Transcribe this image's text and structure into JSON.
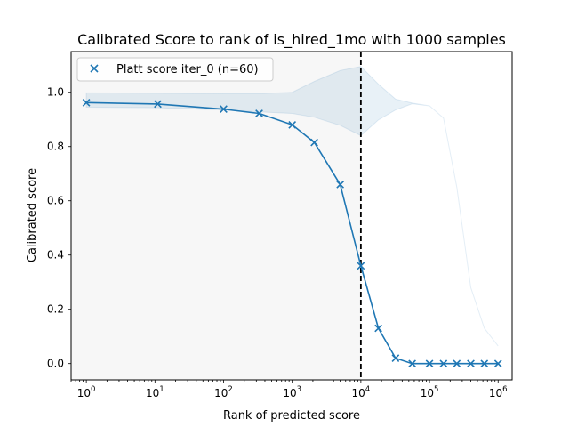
{
  "chart_data": {
    "type": "line",
    "title": "Calibrated Score to rank of is_hired_1mo with 1000 samples",
    "xlabel": "Rank of predicted score",
    "ylabel": "Calibrated score",
    "xscale": "log",
    "xlim": [
      0.6,
      1600000
    ],
    "ylim": [
      -0.06,
      1.15
    ],
    "x_ticks": [
      {
        "base": "10",
        "exp": "0",
        "value": 1
      },
      {
        "base": "10",
        "exp": "1",
        "value": 10
      },
      {
        "base": "10",
        "exp": "2",
        "value": 100
      },
      {
        "base": "10",
        "exp": "3",
        "value": 1000
      },
      {
        "base": "10",
        "exp": "4",
        "value": 10000
      },
      {
        "base": "10",
        "exp": "5",
        "value": 100000
      },
      {
        "base": "10",
        "exp": "6",
        "value": 1000000
      }
    ],
    "y_ticks": [
      {
        "label": "0.0",
        "value": 0.0
      },
      {
        "label": "0.2",
        "value": 0.2
      },
      {
        "label": "0.4",
        "value": 0.4
      },
      {
        "label": "0.6",
        "value": 0.6
      },
      {
        "label": "0.8",
        "value": 0.8
      },
      {
        "label": "1.0",
        "value": 1.0
      }
    ],
    "grid": false,
    "legend_position": "top-left",
    "series": [
      {
        "name": "Platt score iter_0 (n=60)",
        "color": "#1f77b4",
        "marker": "x",
        "x": [
          1,
          11,
          100,
          330,
          1000,
          2100,
          5000,
          10000,
          18000,
          32000,
          56000,
          100000,
          160000,
          250000,
          400000,
          630000,
          1000000
        ],
        "y": [
          0.962,
          0.957,
          0.938,
          0.922,
          0.88,
          0.815,
          0.66,
          0.36,
          0.13,
          0.02,
          0.0,
          0.0,
          0.0,
          0.0,
          0.0,
          0.0,
          0.0
        ]
      }
    ],
    "confidence_band": {
      "color": "#1f77b4",
      "x": [
        1,
        11,
        100,
        330,
        1000,
        2100,
        5000,
        10000,
        18000,
        32000,
        56000,
        100000,
        160000,
        250000,
        400000,
        630000,
        1000000
      ],
      "upper": [
        0.998,
        0.997,
        0.995,
        0.995,
        1.0,
        1.04,
        1.08,
        1.095,
        1.03,
        0.975,
        0.96,
        0.95,
        0.905,
        0.65,
        0.28,
        0.13,
        0.065
      ],
      "lower": [
        0.945,
        0.943,
        0.935,
        0.928,
        0.922,
        0.908,
        0.878,
        0.84,
        0.898,
        0.935,
        0.958,
        0.95,
        0.905,
        0.65,
        0.28,
        0.13,
        0.065
      ]
    },
    "shaded_region": {
      "x_start": 0.6,
      "x_end": 10000,
      "color": "#f7f7f7"
    },
    "vertical_line": {
      "x": 10000,
      "style": "dashed",
      "color": "#000000"
    }
  }
}
